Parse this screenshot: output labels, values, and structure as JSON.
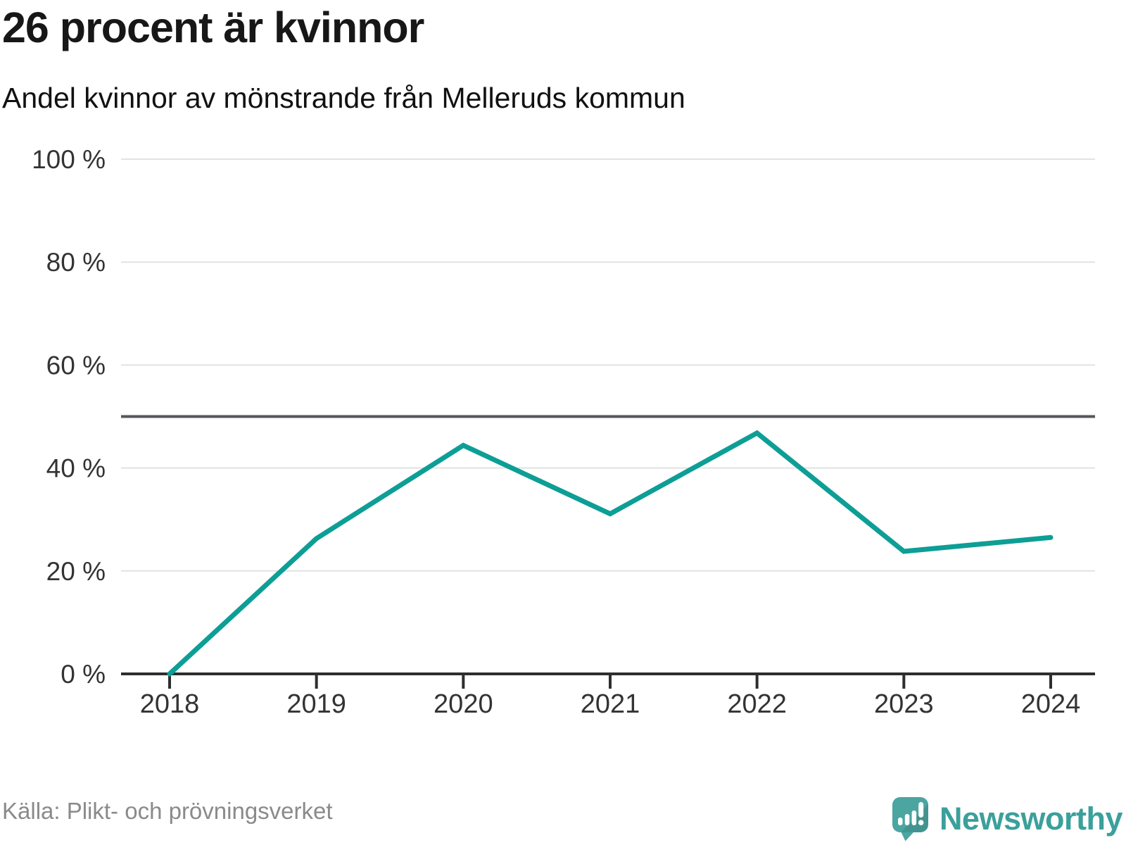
{
  "header": {
    "title": "26 procent är kvinnor",
    "subtitle": "Andel kvinnor av mönstrande från Melleruds kommun"
  },
  "chart_data": {
    "type": "line",
    "title": "26 procent är kvinnor",
    "subtitle": "Andel kvinnor av mönstrande från Melleruds kommun",
    "x": [
      "2018",
      "2019",
      "2020",
      "2021",
      "2022",
      "2023",
      "2024"
    ],
    "series": [
      {
        "name": "Andel kvinnor av mönstrande",
        "values": [
          0,
          26.3,
          44.4,
          31.1,
          46.8,
          23.8,
          26.5
        ]
      }
    ],
    "unit": "%",
    "ylim": [
      0,
      100
    ],
    "yticks": [
      0,
      20,
      40,
      60,
      80,
      100
    ],
    "ytick_label_suffix": " %",
    "reference_line_y": 50,
    "grid": "horizontal",
    "legend": "none",
    "line_color": "#0d9e96"
  },
  "footer": {
    "source": "Källa: Plikt- och prövningsverket",
    "brand_name": "Newsworthy"
  },
  "colors": {
    "accent_teal": "#0d9e96",
    "brand_teal": "#3ba09b",
    "logo_fill": "#4ba5a1",
    "text_dark": "#171717",
    "axis_dark": "#2e2e2e",
    "tick_label": "#333333",
    "grid_light": "#e2e2e2",
    "reference_dark": "#55565c",
    "source_gray": "#8a8a8a"
  }
}
